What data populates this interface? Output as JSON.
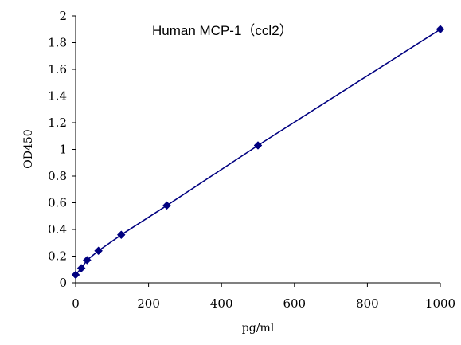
{
  "chart_data": {
    "type": "line",
    "title": "Human MCP-1（ccl2）",
    "xlabel": "pg/ml",
    "ylabel": "OD450",
    "xlim": [
      0,
      1000
    ],
    "ylim": [
      0,
      2
    ],
    "x_ticks": [
      "0",
      "200",
      "400",
      "600",
      "800",
      "1000"
    ],
    "y_ticks": [
      "0",
      "0.2",
      "0.4",
      "0.6",
      "0.8",
      "1",
      "1.2",
      "1.4",
      "1.6",
      "1.8",
      "2"
    ],
    "grid": false,
    "legend": "none",
    "series": [
      {
        "x": [
          0,
          15.6,
          31.25,
          62.5,
          125,
          250,
          500,
          1000
        ],
        "y": [
          0.06,
          0.11,
          0.17,
          0.24,
          0.36,
          0.58,
          1.03,
          1.9
        ],
        "color": "#000080",
        "marker": "diamond"
      }
    ]
  }
}
